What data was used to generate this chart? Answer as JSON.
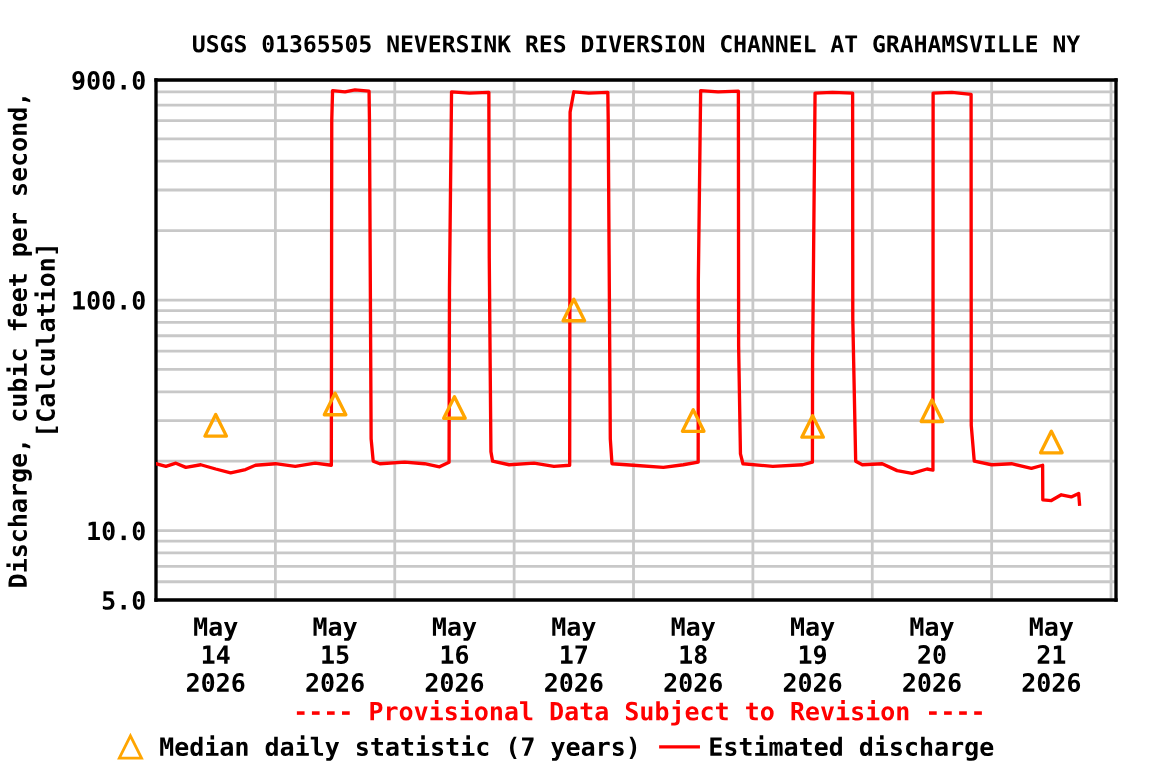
{
  "chart_data": {
    "type": "line",
    "title": "USGS 01365505 NEVERSINK RES DIVERSION CHANNEL AT GRAHAMSVILLE NY",
    "ylabel": "Discharge, cubic feet per second,\n[Calculation]",
    "log": "y",
    "grid": true,
    "legend": "bottom",
    "annotations": [
      "---- Provisional Data Subject to Revision ----"
    ],
    "xlim": [
      "2026-05-14T00:00",
      "2026-05-22T01:00"
    ],
    "xticks": [
      {
        "value": "2026-05-14T12:00",
        "label": "May\n14\n2026"
      },
      {
        "value": "2026-05-15T12:00",
        "label": "May\n15\n2026"
      },
      {
        "value": "2026-05-16T12:00",
        "label": "May\n16\n2026"
      },
      {
        "value": "2026-05-17T12:00",
        "label": "May\n17\n2026"
      },
      {
        "value": "2026-05-18T12:00",
        "label": "May\n18\n2026"
      },
      {
        "value": "2026-05-19T12:00",
        "label": "May\n19\n2026"
      },
      {
        "value": "2026-05-20T12:00",
        "label": "May\n20\n2026"
      },
      {
        "value": "2026-05-21T12:00",
        "label": "May\n21\n2026"
      },
      {
        "value": "2026-05-15T00:00",
        "label": null
      },
      {
        "value": "2026-05-16T00:00",
        "label": null
      },
      {
        "value": "2026-05-17T00:00",
        "label": null
      },
      {
        "value": "2026-05-18T00:00",
        "label": null
      },
      {
        "value": "2026-05-19T00:00",
        "label": null
      },
      {
        "value": "2026-05-20T00:00",
        "label": null
      },
      {
        "value": "2026-05-21T00:00",
        "label": null
      },
      {
        "value": "2026-05-22T00:00",
        "label": null
      }
    ],
    "ylim": [
      5,
      900
    ],
    "yticks": [
      {
        "value": 5,
        "label": "5.0"
      },
      {
        "value": 6,
        "label": null
      },
      {
        "value": 7,
        "label": null
      },
      {
        "value": 8,
        "label": null
      },
      {
        "value": 9,
        "label": null
      },
      {
        "value": 10,
        "label": "10.0"
      },
      {
        "value": 20,
        "label": null
      },
      {
        "value": 30,
        "label": null
      },
      {
        "value": 40,
        "label": null
      },
      {
        "value": 50,
        "label": null
      },
      {
        "value": 60,
        "label": null
      },
      {
        "value": 70,
        "label": null
      },
      {
        "value": 80,
        "label": null
      },
      {
        "value": 90,
        "label": null
      },
      {
        "value": 100,
        "label": "100.0"
      },
      {
        "value": 200,
        "label": null
      },
      {
        "value": 300,
        "label": null
      },
      {
        "value": 400,
        "label": null
      },
      {
        "value": 500,
        "label": null
      },
      {
        "value": 600,
        "label": null
      },
      {
        "value": 700,
        "label": null
      },
      {
        "value": 800,
        "label": null
      },
      {
        "value": 900,
        "label": "900.0"
      }
    ],
    "series": [
      {
        "name": "Median daily statistic (7 years)",
        "type": "scatter",
        "marker": "triangle",
        "color": "#ffa500",
        "x": [
          "2026-05-14T12:00",
          "2026-05-15T12:00",
          "2026-05-16T12:00",
          "2026-05-17T12:00",
          "2026-05-18T12:00",
          "2026-05-19T12:00",
          "2026-05-20T12:00",
          "2026-05-21T12:00"
        ],
        "values": [
          28.6,
          35.4,
          34.2,
          90.5,
          30.0,
          28.3,
          33.1,
          24.2
        ]
      },
      {
        "name": "Estimated discharge",
        "marker": "none",
        "color": "#ff0000",
        "x": [
          "2026-05-14T00:00",
          "2026-05-14T02:00",
          "2026-05-14T04:00",
          "2026-05-14T06:00",
          "2026-05-14T09:00",
          "2026-05-14T12:00",
          "2026-05-14T15:00",
          "2026-05-14T18:00",
          "2026-05-14T20:00",
          "2026-05-15T00:00",
          "2026-05-15T04:00",
          "2026-05-15T08:00",
          "2026-05-15T11:15",
          "2026-05-15T11:20",
          "2026-05-15T11:30",
          "2026-05-15T14:00",
          "2026-05-15T16:00",
          "2026-05-15T18:50",
          "2026-05-15T18:55",
          "2026-05-15T19:15",
          "2026-05-15T19:40",
          "2026-05-15T21:00",
          "2026-05-16T02:00",
          "2026-05-16T06:00",
          "2026-05-16T09:00",
          "2026-05-16T10:55",
          "2026-05-16T11:00",
          "2026-05-16T11:25",
          "2026-05-16T15:00",
          "2026-05-16T18:55",
          "2026-05-16T19:00",
          "2026-05-16T19:20",
          "2026-05-16T19:40",
          "2026-05-16T23:00",
          "2026-05-17T04:00",
          "2026-05-17T08:00",
          "2026-05-17T11:10",
          "2026-05-17T11:15",
          "2026-05-17T12:00",
          "2026-05-17T15:00",
          "2026-05-17T18:50",
          "2026-05-17T18:55",
          "2026-05-17T19:20",
          "2026-05-17T19:40",
          "2026-05-18T00:00",
          "2026-05-18T06:00",
          "2026-05-18T10:00",
          "2026-05-18T13:00",
          "2026-05-18T13:02",
          "2026-05-18T13:30",
          "2026-05-18T17:00",
          "2026-05-18T21:05",
          "2026-05-18T21:08",
          "2026-05-18T21:30",
          "2026-05-18T22:00",
          "2026-05-19T04:00",
          "2026-05-19T10:00",
          "2026-05-19T11:58",
          "2026-05-19T12:00",
          "2026-05-19T12:30",
          "2026-05-19T16:00",
          "2026-05-19T20:03",
          "2026-05-19T20:05",
          "2026-05-19T20:40",
          "2026-05-19T22:00",
          "2026-05-20T02:00",
          "2026-05-20T05:00",
          "2026-05-20T08:00",
          "2026-05-20T11:00",
          "2026-05-20T12:12",
          "2026-05-20T12:14",
          "2026-05-20T16:00",
          "2026-05-20T19:52",
          "2026-05-20T19:54",
          "2026-05-20T20:30",
          "2026-05-21T00:00",
          "2026-05-21T04:00",
          "2026-05-21T08:00",
          "2026-05-21T10:15",
          "2026-05-21T10:17",
          "2026-05-21T12:00",
          "2026-05-21T14:00",
          "2026-05-21T16:00",
          "2026-05-21T17:30",
          "2026-05-21T17:40"
        ],
        "values": [
          19.5,
          19.0,
          19.6,
          18.8,
          19.3,
          18.5,
          17.8,
          18.4,
          19.2,
          19.5,
          19.0,
          19.6,
          19.2,
          600,
          810,
          800,
          815,
          805,
          600,
          25,
          20,
          19.5,
          19.8,
          19.5,
          18.9,
          19.8,
          113,
          800,
          790,
          795,
          152,
          22,
          20,
          19.3,
          19.6,
          19.0,
          19.2,
          653,
          800,
          790,
          795,
          600,
          25,
          19.5,
          19.2,
          18.8,
          19.3,
          19.8,
          122,
          810,
          800,
          805,
          63,
          21.5,
          19.5,
          19.0,
          19.3,
          19.8,
          54,
          790,
          795,
          790,
          83,
          20,
          19.3,
          19.5,
          18.2,
          17.7,
          18.5,
          18.3,
          790,
          795,
          780,
          28.6,
          20,
          19.3,
          19.5,
          18.6,
          19.2,
          13.6,
          13.5,
          14.3,
          14.0,
          14.5,
          13.0
        ]
      }
    ]
  }
}
